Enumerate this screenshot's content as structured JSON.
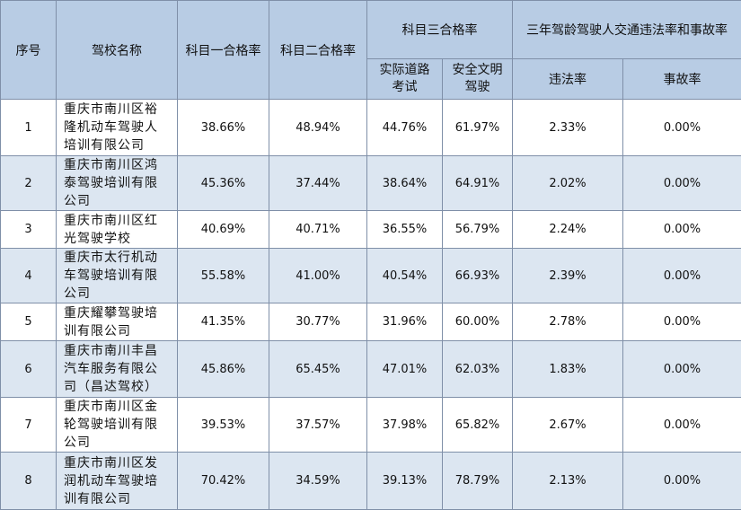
{
  "table": {
    "header": {
      "no": "序号",
      "name": "驾校名称",
      "subject1": "科目一合格率",
      "subject2": "科目二合格率",
      "subject3": "科目三合格率",
      "subject3_road": "实际道路考试",
      "subject3_safe": "安全文明驾驶",
      "group": "三年驾龄驾驶人交通违法率和事故率",
      "violation": "违法率",
      "accident": "事故率"
    },
    "rows": [
      [
        "1",
        "重庆市南川区裕隆机动车驾驶人培训有限公司",
        "38.66%",
        "48.94%",
        "44.76%",
        "61.97%",
        "2.33%",
        "0.00%"
      ],
      [
        "2",
        "重庆市南川区鸿泰驾驶培训有限公司",
        "45.36%",
        "37.44%",
        "38.64%",
        "64.91%",
        "2.02%",
        "0.00%"
      ],
      [
        "3",
        "重庆市南川区红光驾驶学校",
        "40.69%",
        "40.71%",
        "36.55%",
        "56.79%",
        "2.24%",
        "0.00%"
      ],
      [
        "4",
        "重庆市太行机动车驾驶培训有限公司",
        "55.58%",
        "41.00%",
        "40.54%",
        "66.93%",
        "2.39%",
        "0.00%"
      ],
      [
        "5",
        "重庆耀攀驾驶培训有限公司",
        "41.35%",
        "30.77%",
        "31.96%",
        "60.00%",
        "2.78%",
        "0.00%"
      ],
      [
        "6",
        "重庆市南川丰昌汽车服务有限公司（昌达驾校）",
        "45.86%",
        "65.45%",
        "47.01%",
        "62.03%",
        "1.83%",
        "0.00%"
      ],
      [
        "7",
        "重庆市南川区金轮驾驶培训有限公司",
        "39.53%",
        "37.57%",
        "37.98%",
        "65.82%",
        "2.67%",
        "0.00%"
      ],
      [
        "8",
        "重庆市南川区发润机动车驾驶培训有限公司",
        "70.42%",
        "34.59%",
        "39.13%",
        "78.79%",
        "2.13%",
        "0.00%"
      ]
    ]
  }
}
